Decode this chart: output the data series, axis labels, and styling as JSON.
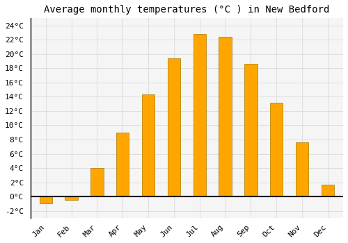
{
  "months": [
    "Jan",
    "Feb",
    "Mar",
    "Apr",
    "May",
    "Jun",
    "Jul",
    "Aug",
    "Sep",
    "Oct",
    "Nov",
    "Dec"
  ],
  "temperatures": [
    -1.0,
    -0.5,
    4.0,
    9.0,
    14.3,
    19.4,
    22.8,
    22.4,
    18.6,
    13.2,
    7.6,
    1.7
  ],
  "bar_color": "#FFA500",
  "bar_edge_color": "#B8860B",
  "title": "Average monthly temperatures (°C ) in New Bedford",
  "ylim": [
    -3,
    25
  ],
  "yticks": [
    -2,
    0,
    2,
    4,
    6,
    8,
    10,
    12,
    14,
    16,
    18,
    20,
    22,
    24
  ],
  "background_color": "#ffffff",
  "plot_bg_color": "#f5f5f5",
  "grid_color": "#dddddd",
  "title_fontsize": 10,
  "tick_fontsize": 8,
  "font_family": "monospace",
  "bar_width": 0.5
}
